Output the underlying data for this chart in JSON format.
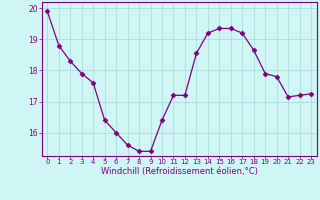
{
  "x": [
    0,
    1,
    2,
    3,
    4,
    5,
    6,
    7,
    8,
    9,
    10,
    11,
    12,
    13,
    14,
    15,
    16,
    17,
    18,
    19,
    20,
    21,
    22,
    23
  ],
  "y": [
    19.9,
    18.8,
    18.3,
    17.9,
    17.6,
    16.4,
    16.0,
    15.6,
    15.4,
    15.4,
    16.4,
    17.2,
    17.2,
    18.55,
    19.2,
    19.35,
    19.35,
    19.2,
    18.65,
    17.9,
    17.8,
    17.15,
    17.2,
    17.25
  ],
  "line_color": "#800080",
  "marker": "D",
  "marker_size": 2.5,
  "bg_color": "#cff5f5",
  "grid_color": "#aadddd",
  "xlabel": "Windchill (Refroidissement éolien,°C)",
  "xlabel_color": "#800080",
  "tick_color": "#800080",
  "ylim": [
    15.25,
    20.2
  ],
  "xlim": [
    -0.5,
    23.5
  ],
  "yticks": [
    16,
    17,
    18,
    19,
    20
  ],
  "xticks": [
    0,
    1,
    2,
    3,
    4,
    5,
    6,
    7,
    8,
    9,
    10,
    11,
    12,
    13,
    14,
    15,
    16,
    17,
    18,
    19,
    20,
    21,
    22,
    23
  ]
}
